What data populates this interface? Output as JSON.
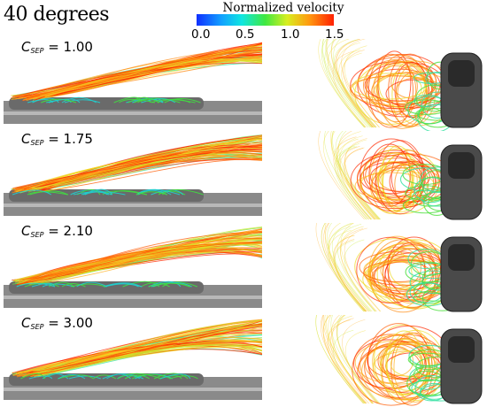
{
  "title": "40 degrees",
  "colorbar": {
    "title": "Normalized velocity",
    "ticks": [
      "0.0",
      "0.5",
      "1.0",
      "1.5"
    ],
    "colors": [
      "#1030ff",
      "#10e6e0",
      "#40e840",
      "#d8ee20",
      "#ff9a10",
      "#ff2000"
    ]
  },
  "cases": [
    {
      "symbol": "C",
      "subscript": "SEP",
      "value": "= 1.00"
    },
    {
      "symbol": "C",
      "subscript": "SEP",
      "value": "= 1.75"
    },
    {
      "symbol": "C",
      "subscript": "SEP",
      "value": "= 2.10"
    },
    {
      "symbol": "C",
      "subscript": "SEP",
      "value": "= 3.00"
    }
  ]
}
